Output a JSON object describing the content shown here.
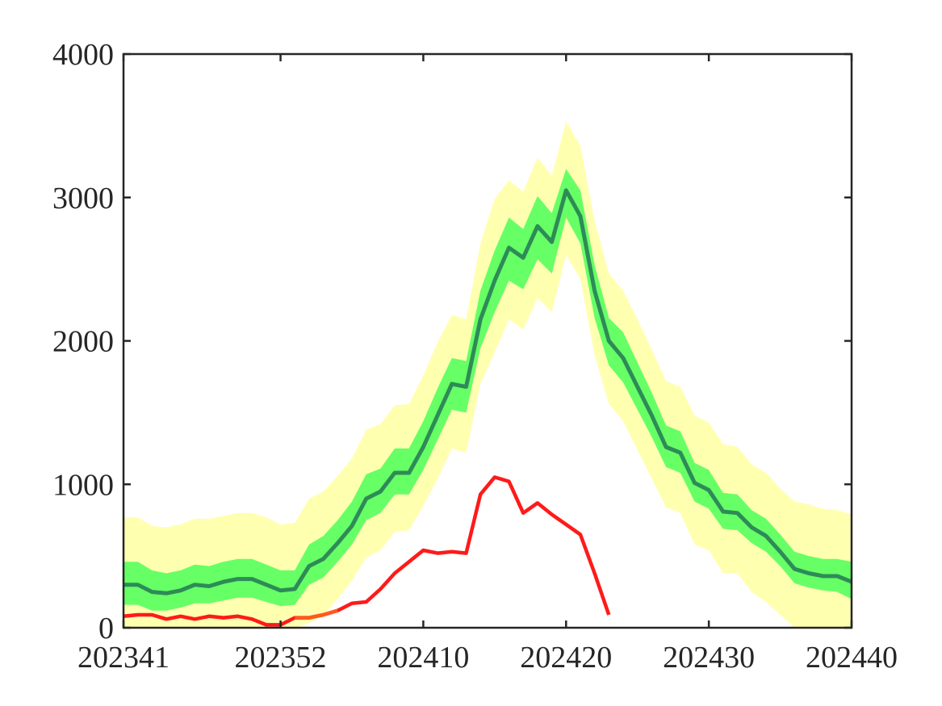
{
  "chart_data": {
    "type": "line",
    "title": "",
    "xlabel": "",
    "ylabel": "",
    "xlim": [
      0,
      51
    ],
    "ylim": [
      0,
      4000
    ],
    "grid": false,
    "legend": "none",
    "x_tick_labels": [
      "202341",
      "202352",
      "202410",
      "202420",
      "202430",
      "202440"
    ],
    "x_tick_positions": [
      0,
      11,
      21,
      31,
      41,
      51
    ],
    "y_tick_labels": [
      "0",
      "1000",
      "2000",
      "3000",
      "4000"
    ],
    "y_tick_values": [
      0,
      1000,
      2000,
      3000,
      4000
    ],
    "colors": {
      "outer_band": "#ffffb0",
      "inner_band": "#66ff66",
      "median": "#2e8b57",
      "observed_red": "#ff1a1a",
      "observed_orange": "#ff5a1a",
      "axis": "#262626"
    },
    "series": [
      {
        "role": "median",
        "x": [
          0,
          1,
          2,
          3,
          4,
          5,
          6,
          7,
          8,
          9,
          10,
          11,
          12,
          13,
          14,
          15,
          16,
          17,
          18,
          19,
          20,
          21,
          22,
          23,
          24,
          25,
          26,
          27,
          28,
          29,
          30,
          31,
          32,
          33,
          34,
          35,
          36,
          37,
          38,
          39,
          40,
          41,
          42,
          43,
          44,
          45,
          46,
          47,
          48,
          49,
          50,
          51
        ],
        "values": [
          300,
          300,
          250,
          240,
          260,
          300,
          290,
          320,
          340,
          340,
          300,
          260,
          270,
          430,
          480,
          590,
          710,
          900,
          950,
          1080,
          1080,
          1260,
          1480,
          1700,
          1680,
          2150,
          2420,
          2650,
          2580,
          2800,
          2690,
          3050,
          2870,
          2350,
          2000,
          1880,
          1680,
          1480,
          1260,
          1220,
          1010,
          960,
          810,
          800,
          700,
          640,
          530,
          410,
          380,
          360,
          360,
          320
        ]
      },
      {
        "role": "inner_band",
        "x": [
          0,
          1,
          2,
          3,
          4,
          5,
          6,
          7,
          8,
          9,
          10,
          11,
          12,
          13,
          14,
          15,
          16,
          17,
          18,
          19,
          20,
          21,
          22,
          23,
          24,
          25,
          26,
          27,
          28,
          29,
          30,
          31,
          32,
          33,
          34,
          35,
          36,
          37,
          38,
          39,
          40,
          41,
          42,
          43,
          44,
          45,
          46,
          47,
          48,
          49,
          50,
          51
        ],
        "lower": [
          160,
          160,
          120,
          120,
          140,
          170,
          170,
          190,
          210,
          210,
          180,
          150,
          160,
          300,
          350,
          460,
          580,
          750,
          800,
          930,
          930,
          1100,
          1310,
          1520,
          1500,
          1950,
          2200,
          2420,
          2360,
          2570,
          2470,
          2860,
          2680,
          2160,
          1830,
          1710,
          1520,
          1330,
          1120,
          1080,
          880,
          830,
          690,
          680,
          590,
          530,
          430,
          310,
          280,
          260,
          250,
          200
        ],
        "upper": [
          460,
          460,
          400,
          380,
          400,
          440,
          430,
          460,
          480,
          480,
          440,
          400,
          400,
          580,
          640,
          750,
          880,
          1070,
          1110,
          1250,
          1250,
          1440,
          1670,
          1880,
          1860,
          2350,
          2630,
          2860,
          2780,
          3010,
          2890,
          3200,
          3050,
          2530,
          2160,
          2060,
          1850,
          1640,
          1410,
          1370,
          1150,
          1100,
          940,
          930,
          820,
          760,
          650,
          530,
          500,
          480,
          480,
          460
        ]
      },
      {
        "role": "outer_band",
        "x": [
          0,
          1,
          2,
          3,
          4,
          5,
          6,
          7,
          8,
          9,
          10,
          11,
          12,
          13,
          14,
          15,
          16,
          17,
          18,
          19,
          20,
          21,
          22,
          23,
          24,
          25,
          26,
          27,
          28,
          29,
          30,
          31,
          32,
          33,
          34,
          35,
          36,
          37,
          38,
          39,
          40,
          41,
          42,
          43,
          44,
          45,
          46,
          47,
          48,
          49,
          50,
          51
        ],
        "lower": [
          0,
          0,
          0,
          0,
          0,
          0,
          0,
          0,
          0,
          0,
          0,
          0,
          0,
          30,
          90,
          200,
          330,
          490,
          540,
          670,
          680,
          850,
          1040,
          1250,
          1220,
          1700,
          1920,
          2150,
          2080,
          2300,
          2200,
          2600,
          2430,
          1900,
          1560,
          1440,
          1240,
          1040,
          840,
          800,
          580,
          540,
          380,
          380,
          250,
          180,
          90,
          0,
          0,
          0,
          0,
          0
        ],
        "upper": [
          770,
          770,
          710,
          700,
          720,
          760,
          760,
          780,
          800,
          800,
          770,
          720,
          730,
          900,
          950,
          1060,
          1180,
          1380,
          1420,
          1550,
          1560,
          1760,
          1990,
          2180,
          2150,
          2680,
          2990,
          3120,
          3040,
          3280,
          3150,
          3530,
          3360,
          2840,
          2470,
          2350,
          2150,
          1940,
          1720,
          1680,
          1480,
          1430,
          1280,
          1260,
          1140,
          1080,
          970,
          880,
          860,
          830,
          820,
          790
        ]
      },
      {
        "role": "observed",
        "x": [
          0,
          1,
          2,
          3,
          4,
          5,
          6,
          7,
          8,
          9,
          10,
          11,
          12,
          13,
          14,
          15,
          16,
          17,
          18,
          19,
          20,
          21,
          22,
          23,
          24,
          25,
          26,
          27,
          28,
          29,
          30,
          31,
          32,
          33
        ],
        "values": [
          80,
          90,
          90,
          60,
          80,
          60,
          80,
          70,
          80,
          60,
          20,
          20,
          70,
          70,
          90,
          120,
          170,
          180,
          270,
          380,
          460,
          540,
          520,
          530,
          520,
          930,
          1050,
          1020,
          800,
          870,
          790,
          720,
          650,
          380
        ],
        "extended_end": {
          "x": 34,
          "value": 90
        }
      }
    ]
  }
}
